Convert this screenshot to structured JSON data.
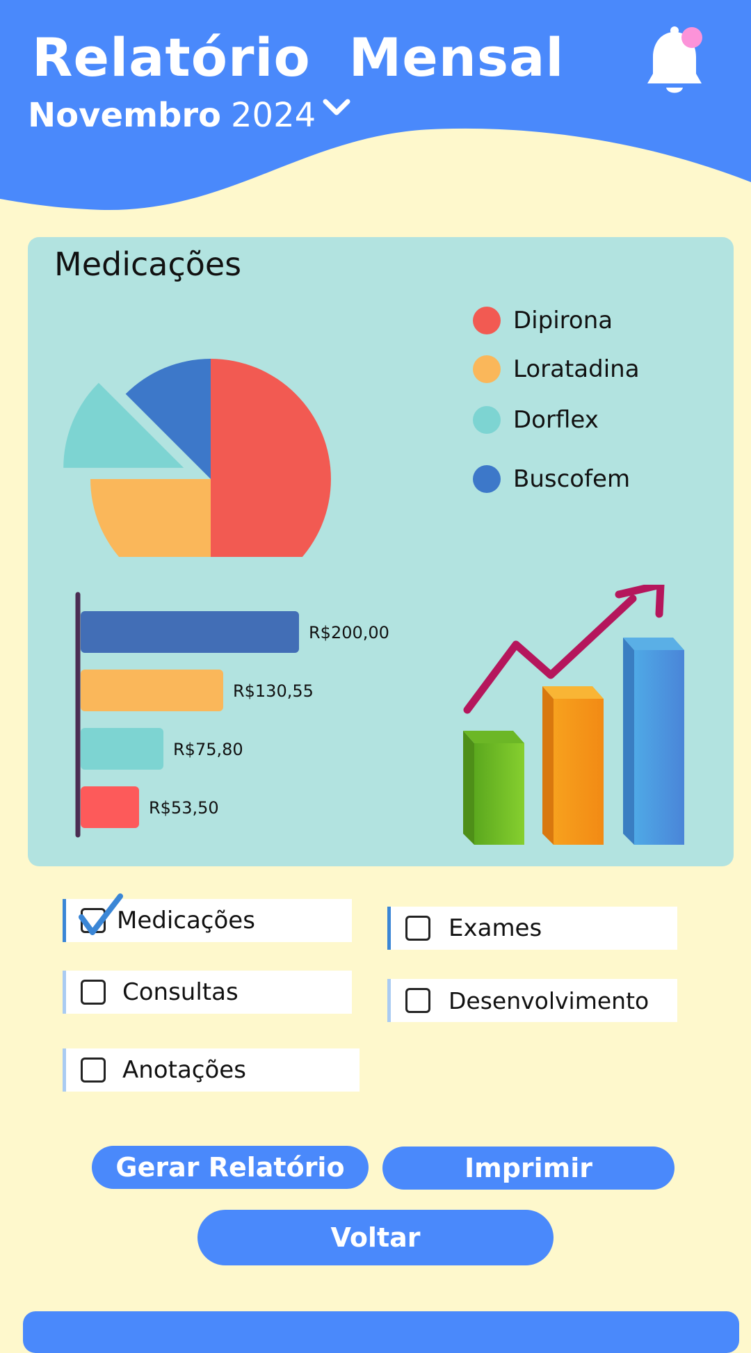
{
  "header": {
    "title": "Relatório  Mensal",
    "month": "Novembro",
    "year": "2024",
    "accent_color": "#4A89FB"
  },
  "card": {
    "title": "Medicações",
    "background": "#B2E3E0"
  },
  "chart_data": [
    {
      "type": "pie",
      "title": "",
      "slices": [
        {
          "name": "Dipirona",
          "value": 50,
          "color": "#F25A52"
        },
        {
          "name": "Loratadina",
          "value": 25,
          "color": "#FAB75A"
        },
        {
          "name": "Dorflex",
          "value": 12.5,
          "color": "#7DD4D2",
          "exploded": true
        },
        {
          "name": "Buscofem",
          "value": 12.5,
          "color": "#3D78C9"
        }
      ],
      "legend_position": "right"
    },
    {
      "type": "bar",
      "orientation": "horizontal",
      "title": "",
      "categories": [
        "",
        "",
        "",
        ""
      ],
      "values": [
        200.0,
        130.55,
        75.8,
        53.5
      ],
      "labels": [
        "R$200,00",
        "R$130,55",
        "R$75,80",
        "R$53,50"
      ],
      "colors": [
        "#426EB6",
        "#FAB75A",
        "#7DD4D2",
        "#FD5A5A"
      ],
      "xlim": [
        0,
        200
      ],
      "grid": false
    }
  ],
  "legend_items": [
    {
      "label": "Dipirona",
      "color": "#F25A52"
    },
    {
      "label": "Loratadina",
      "color": "#FAB75A"
    },
    {
      "label": "Dorflex",
      "color": "#7DD4D2"
    },
    {
      "label": "Buscofem",
      "color": "#3D78C9"
    }
  ],
  "decoration": {
    "icon": "growth-chart-icon",
    "bar_colors": [
      "#7AC72A",
      "#F7931E",
      "#4A9FE0"
    ],
    "arrow_color": "#B5165C"
  },
  "options": [
    {
      "label": "Medicações",
      "checked": true,
      "stripe_color": "#3A86D6"
    },
    {
      "label": "Exames",
      "checked": false,
      "stripe_color": "#3A86D6"
    },
    {
      "label": "Consultas",
      "checked": false,
      "stripe_color": "#A9CBF2"
    },
    {
      "label": "Desenvolvimento",
      "checked": false,
      "stripe_color": "#A9CBF2"
    },
    {
      "label": "Anotações",
      "checked": false,
      "stripe_color": "#A9CBF2"
    }
  ],
  "buttons": {
    "generate": "Gerar Relatório",
    "print": "Imprimir",
    "back": "Voltar"
  },
  "icons": {
    "bell": "bell-icon",
    "dropdown": "chevron-down-icon",
    "notification_dot_color": "#FC93D9"
  }
}
